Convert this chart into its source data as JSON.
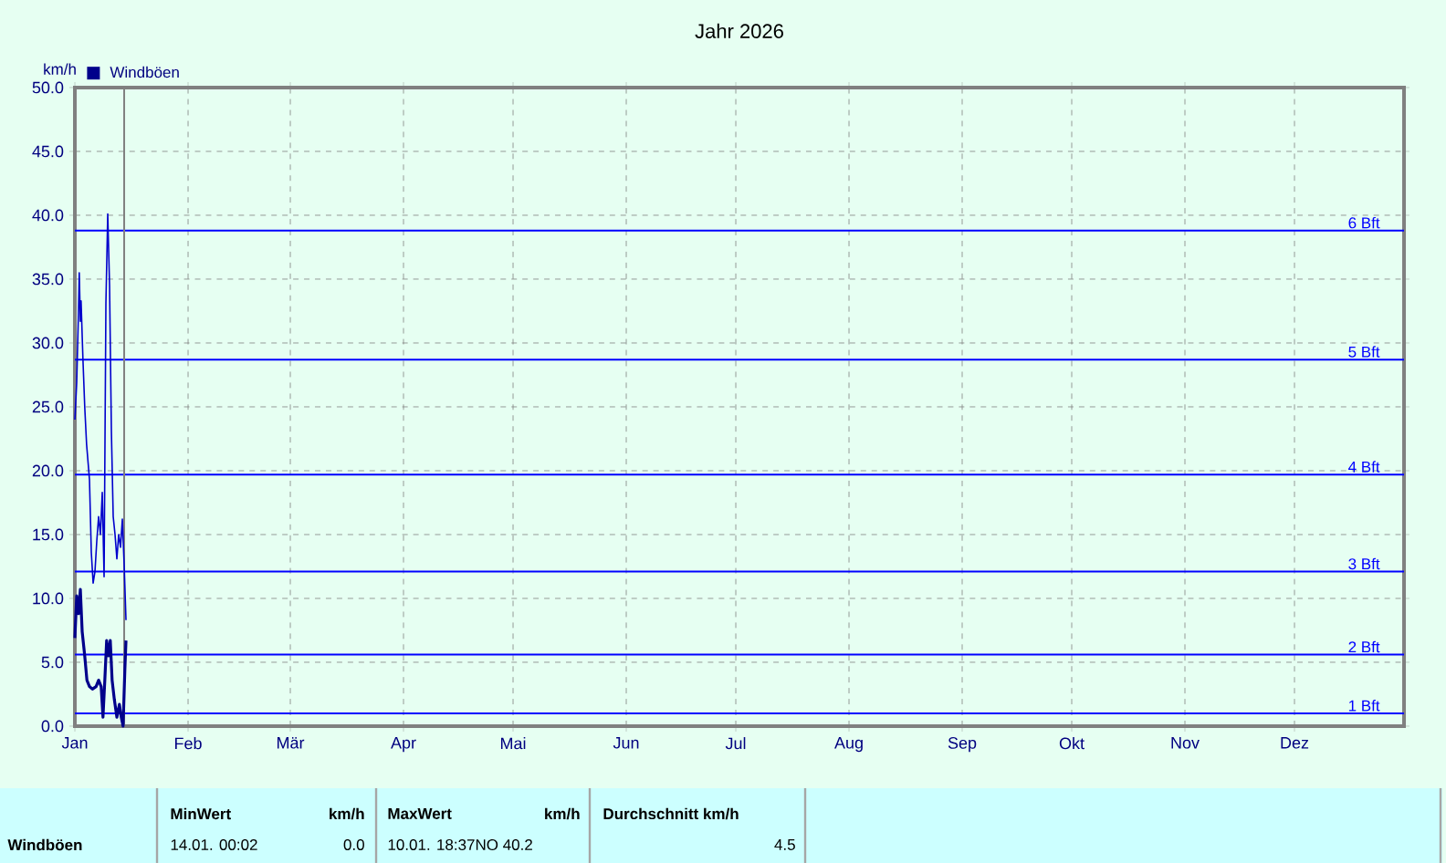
{
  "chart_data": {
    "type": "line",
    "title": "Jahr 2026",
    "ylabel": "km/h",
    "xlim": [
      "2026-01-01",
      "2026-12-31"
    ],
    "ylim": [
      0,
      50
    ],
    "xticks": [
      {
        "value": "2026-01-01",
        "label": "Jan"
      },
      {
        "value": "2026-02-01",
        "label": "Feb"
      },
      {
        "value": "2026-03-01",
        "label": "Mär"
      },
      {
        "value": "2026-04-01",
        "label": "Apr"
      },
      {
        "value": "2026-05-01",
        "label": "Mai"
      },
      {
        "value": "2026-06-01",
        "label": "Jun"
      },
      {
        "value": "2026-07-01",
        "label": "Jul"
      },
      {
        "value": "2026-08-01",
        "label": "Aug"
      },
      {
        "value": "2026-09-01",
        "label": "Sep"
      },
      {
        "value": "2026-10-01",
        "label": "Okt"
      },
      {
        "value": "2026-11-01",
        "label": "Nov"
      },
      {
        "value": "2026-12-01",
        "label": "Dez"
      }
    ],
    "yticks": [
      {
        "value": 0,
        "label": "0.0"
      },
      {
        "value": 5,
        "label": "5.0"
      },
      {
        "value": 10,
        "label": "10.0"
      },
      {
        "value": 15,
        "label": "15.0"
      },
      {
        "value": 20,
        "label": "20.0"
      },
      {
        "value": 25,
        "label": "25.0"
      },
      {
        "value": 30,
        "label": "30.0"
      },
      {
        "value": 35,
        "label": "35.0"
      },
      {
        "value": 40,
        "label": "40.0"
      },
      {
        "value": 45,
        "label": "45.0"
      },
      {
        "value": 50,
        "label": "50.0"
      }
    ],
    "grid": true,
    "legend": "top left",
    "marker": "none",
    "series": [
      {
        "color": "#0000cc",
        "x": [
          "2026-01-01T00:00",
          "2026-01-01T12:00",
          "2026-01-02T00:00",
          "2026-01-02T04:48",
          "2026-01-02T12:00",
          "2026-01-02T16:48",
          "2026-01-03T04:48",
          "2026-01-03T16:48",
          "2026-01-04T04:48",
          "2026-01-05T00:00",
          "2026-01-05T12:00",
          "2026-01-06T00:00",
          "2026-01-06T12:00",
          "2026-01-07T00:00",
          "2026-01-07T12:00",
          "2026-01-08T00:00",
          "2026-01-08T12:00",
          "2026-01-09T00:00",
          "2026-01-09T12:00",
          "2026-01-10T00:00",
          "2026-01-10T12:00",
          "2026-01-11T00:00",
          "2026-01-11T12:00",
          "2026-01-12T00:00",
          "2026-01-12T12:00",
          "2026-01-13T00:00",
          "2026-01-13T12:00",
          "2026-01-14T00:00",
          "2026-01-14T12:00",
          "2026-01-15T00:00"
        ],
        "values": [
          24.0,
          26.9,
          32.6,
          35.5,
          31.7,
          33.3,
          28.8,
          25.0,
          22.1,
          19.3,
          13.6,
          11.2,
          12.1,
          14.5,
          16.4,
          15.0,
          18.3,
          11.7,
          33.1,
          40.1,
          34.5,
          23.1,
          16.4,
          15.0,
          13.1,
          15.0,
          14.0,
          16.2,
          12.6,
          8.3
        ]
      },
      {
        "name": "Windböen",
        "color": "#00008b",
        "x": [
          "2026-01-01T00:00",
          "2026-01-01T12:00",
          "2026-01-02T00:00",
          "2026-01-02T12:00",
          "2026-01-03T00:00",
          "2026-01-03T16:48",
          "2026-01-04T07:12",
          "2026-01-05T00:00",
          "2026-01-05T19:12",
          "2026-01-06T19:12",
          "2026-01-07T12:00",
          "2026-01-08T04:48",
          "2026-01-08T16:48",
          "2026-01-09T04:48",
          "2026-01-09T16:48",
          "2026-01-10T04:48",
          "2026-01-10T16:48",
          "2026-01-11T04:48",
          "2026-01-11T19:12",
          "2026-01-12T12:00",
          "2026-01-13T04:48",
          "2026-01-13T16:48",
          "2026-01-14T04:48",
          "2026-01-14T16:48",
          "2026-01-15T00:00"
        ],
        "values": [
          6.9,
          10.2,
          8.8,
          10.7,
          7.4,
          5.5,
          3.6,
          3.1,
          2.9,
          3.1,
          3.6,
          3.1,
          0.7,
          3.6,
          6.7,
          5.5,
          6.7,
          3.6,
          2.1,
          0.7,
          1.7,
          0.7,
          0.0,
          4.5,
          6.7
        ]
      }
    ],
    "ref_lines": [
      {
        "axis": "y",
        "value": 1.0,
        "label": "1 Bft",
        "color": "#0000ff"
      },
      {
        "axis": "y",
        "value": 5.6,
        "label": "2 Bft",
        "color": "#0000ff"
      },
      {
        "axis": "y",
        "value": 12.1,
        "label": "3 Bft",
        "color": "#0000ff"
      },
      {
        "axis": "y",
        "value": 19.7,
        "label": "4 Bft",
        "color": "#0000ff"
      },
      {
        "axis": "y",
        "value": 28.7,
        "label": "5 Bft",
        "color": "#0000ff"
      },
      {
        "axis": "y",
        "value": 38.8,
        "label": "6 Bft",
        "color": "#0000ff"
      },
      {
        "axis": "x",
        "value": "2026-01-14T12:00",
        "color": "#808080"
      }
    ],
    "annotations": [
      "Windböen",
      "MinWert",
      "km/h",
      "14.01.  00:02",
      "0.0",
      "MaxWert",
      "km/h",
      "10.01.  18:37NO 40.2",
      "Durchschnitt km/h",
      "4.5"
    ]
  }
}
